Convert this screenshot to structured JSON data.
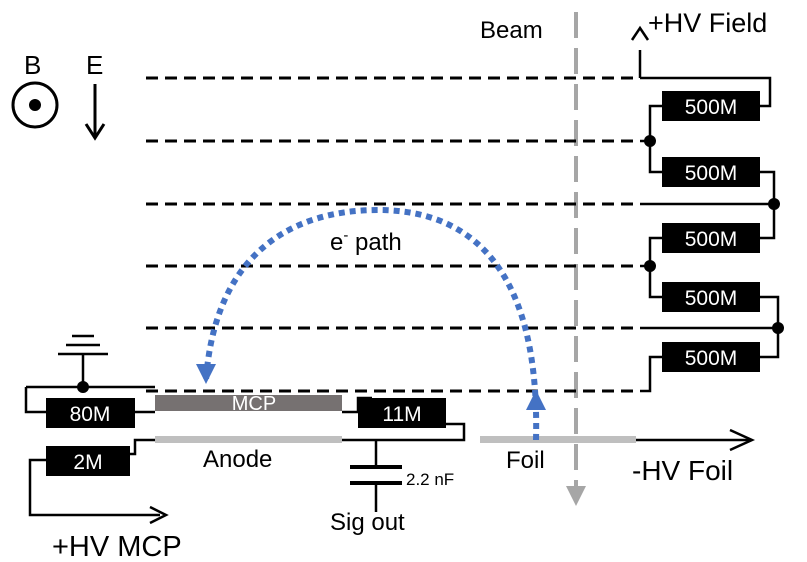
{
  "labels": {
    "beam": "Beam",
    "hv_field": "+HV Field",
    "b_field": "B",
    "e_field": "E",
    "e_path_base": "e",
    "e_path_sup": "-",
    "e_path_rest": " path",
    "mcp": "MCP",
    "anode": "Anode",
    "foil": "Foil",
    "hv_foil": "-HV Foil",
    "hv_mcp": "+HV MCP",
    "capacitor": "2.2 nF",
    "sig_out": "Sig out"
  },
  "resistors": {
    "r1": "500M",
    "r2": "500M",
    "r3": "500M",
    "r4": "500M",
    "r5": "500M",
    "r_80m": "80M",
    "r_11m": "11M",
    "r_2m": "2M"
  },
  "colors": {
    "wire": "#000000",
    "resistor_fill": "#000000",
    "resistor_text": "#ffffff",
    "beam": "#a6a6a6",
    "electron_path": "#4472c4",
    "mcp_plate": "#767171",
    "anode_plate": "#bfbfbf",
    "foil_plate": "#bfbfbf"
  }
}
